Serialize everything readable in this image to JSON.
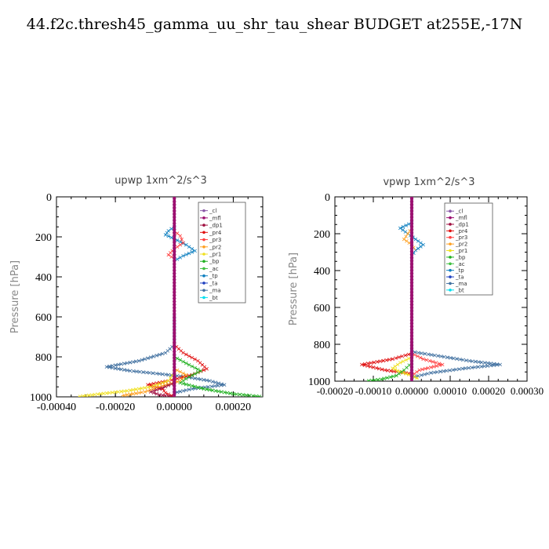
{
  "title": "44.f2c.thresh45_gamma_uu_shr_tau_shear  BUDGET at255E,-17N",
  "legend_entries": [
    {
      "label": "_cl",
      "color": "#8a5aa8"
    },
    {
      "label": "_mfl",
      "color": "#9c1070"
    },
    {
      "label": "_dp1",
      "color": "#a01040"
    },
    {
      "label": "_pr4",
      "color": "#e01010"
    },
    {
      "label": "_pr3",
      "color": "#ff4040"
    },
    {
      "label": "_pr2",
      "color": "#ffa020"
    },
    {
      "label": "_pr1",
      "color": "#f0e020"
    },
    {
      "label": "_bp",
      "color": "#20b020"
    },
    {
      "label": "_ac",
      "color": "#40c040"
    },
    {
      "label": "_tp",
      "color": "#1080c0"
    },
    {
      "label": "_ta",
      "color": "#2040c0"
    },
    {
      "label": "_ma",
      "color": "#4070a0"
    },
    {
      "label": "_bt",
      "color": "#00e0f0"
    }
  ],
  "chart_data": [
    {
      "type": "line",
      "title": "upwp   1xm^2/s^3",
      "xlabel": "",
      "ylabel": "Pressure [hPa]",
      "xlim": [
        -0.0004,
        0.0003
      ],
      "ylim": [
        1000,
        0
      ],
      "x_ticks": [
        "-0.00040",
        "-0.00020",
        "0.00000",
        "0.00020"
      ],
      "x_tick_values": [
        -0.0004,
        -0.0002,
        0.0,
        0.0002
      ],
      "y_ticks": [
        "0",
        "200",
        "400",
        "600",
        "800",
        "1000"
      ],
      "y_tick_values": [
        0,
        200,
        400,
        600,
        800,
        1000
      ],
      "legend_position": "top-right",
      "series": [
        {
          "name": "_ma",
          "color": "#4070a0",
          "points": [
            [
              0,
              600
            ],
            [
              0,
              740
            ],
            [
              -3e-05,
              780
            ],
            [
              -0.00012,
              820
            ],
            [
              -0.00023,
              850
            ],
            [
              -0.00015,
              870
            ],
            [
              -5e-05,
              885
            ],
            [
              4e-05,
              900
            ],
            [
              0.00012,
              920
            ],
            [
              0.00017,
              940
            ],
            [
              6e-05,
              960
            ],
            [
              0,
              980
            ],
            [
              0,
              1000
            ]
          ]
        },
        {
          "name": "_tp",
          "color": "#1080c0",
          "points": [
            [
              0,
              150
            ],
            [
              -2e-05,
              170
            ],
            [
              -3e-05,
              190
            ],
            [
              0,
              210
            ],
            [
              4e-05,
              240
            ],
            [
              7e-05,
              270
            ],
            [
              3e-05,
              295
            ],
            [
              0,
              320
            ]
          ]
        },
        {
          "name": "_pr4",
          "color": "#e01010",
          "points": [
            [
              0,
              740
            ],
            [
              3e-05,
              780
            ],
            [
              8e-05,
              820
            ],
            [
              0.00011,
              860
            ],
            [
              6e-05,
              890
            ],
            [
              -2e-05,
              920
            ],
            [
              -9e-05,
              940
            ],
            [
              -4e-05,
              960
            ],
            [
              -3e-05,
              980
            ],
            [
              0,
              1000
            ]
          ]
        },
        {
          "name": "_pr3",
          "color": "#ff4040",
          "points": [
            [
              0,
              170
            ],
            [
              2e-05,
              195
            ],
            [
              3e-05,
              230
            ],
            [
              0,
              260
            ],
            [
              -2e-05,
              290
            ],
            [
              0,
              310
            ]
          ]
        },
        {
          "name": "_pr1",
          "color": "#f0e020",
          "points": [
            [
              0,
              880
            ],
            [
              -2e-05,
              920
            ],
            [
              -8e-05,
              950
            ],
            [
              -0.00016,
              970
            ],
            [
              -0.00025,
              985
            ],
            [
              -0.00033,
              1000
            ]
          ]
        },
        {
          "name": "_pr2",
          "color": "#ffa020",
          "points": [
            [
              0,
              860
            ],
            [
              4e-05,
              890
            ],
            [
              2e-05,
              920
            ],
            [
              -5e-05,
              950
            ],
            [
              -0.0001,
              975
            ],
            [
              -0.00018,
              995
            ]
          ]
        },
        {
          "name": "_bp",
          "color": "#20b020",
          "points": [
            [
              0,
              800
            ],
            [
              5e-05,
              840
            ],
            [
              9e-05,
              870
            ],
            [
              5e-05,
              900
            ],
            [
              2e-05,
              930
            ],
            [
              0.0001,
              960
            ],
            [
              0.0002,
              985
            ],
            [
              0.0003,
              1000
            ]
          ]
        },
        {
          "name": "_dp1",
          "color": "#a01040",
          "points": [
            [
              0,
              930
            ],
            [
              -4e-05,
              955
            ],
            [
              -8e-05,
              975
            ],
            [
              -5e-05,
              990
            ],
            [
              0,
              1000
            ]
          ]
        },
        {
          "name": "_cl",
          "color": "#8a5aa8",
          "points": [
            [
              0,
              0
            ],
            [
              0,
              1000
            ]
          ]
        },
        {
          "name": "_mfl",
          "color": "#9c1070",
          "points": [
            [
              0,
              0
            ],
            [
              0,
              1000
            ]
          ]
        }
      ]
    },
    {
      "type": "line",
      "title": "vpwp   1xm^2/s^3",
      "xlabel": "",
      "ylabel": "Pressure [hPa]",
      "xlim": [
        -0.0002,
        0.0003
      ],
      "ylim": [
        1000,
        0
      ],
      "x_ticks": [
        "-0.00020",
        "-0.00010",
        "0.00000",
        "0.00010",
        "0.00020",
        "0.00030"
      ],
      "x_tick_values": [
        -0.0002,
        -0.0001,
        0.0,
        0.0001,
        0.0002,
        0.0003
      ],
      "y_ticks": [
        "0",
        "200",
        "400",
        "600",
        "800",
        "1000"
      ],
      "y_tick_values": [
        0,
        200,
        400,
        600,
        800,
        1000
      ],
      "legend_position": "top-right",
      "series": [
        {
          "name": "_ma",
          "color": "#4070a0",
          "points": [
            [
              0,
              800
            ],
            [
              0,
              840
            ],
            [
              6e-05,
              860
            ],
            [
              0.00015,
              890
            ],
            [
              0.00023,
              910
            ],
            [
              0.00014,
              930
            ],
            [
              5e-05,
              955
            ],
            [
              0,
              980
            ],
            [
              0,
              1000
            ]
          ]
        },
        {
          "name": "_tp",
          "color": "#1080c0",
          "points": [
            [
              0,
              140
            ],
            [
              -3e-05,
              170
            ],
            [
              -1e-05,
              200
            ],
            [
              1e-05,
              230
            ],
            [
              3e-05,
              260
            ],
            [
              1e-05,
              290
            ],
            [
              0,
              320
            ]
          ]
        },
        {
          "name": "_pr4",
          "color": "#e01010",
          "points": [
            [
              0,
              850
            ],
            [
              -5e-05,
              880
            ],
            [
              -0.00013,
              910
            ],
            [
              -7e-05,
              940
            ],
            [
              0,
              960
            ],
            [
              0,
              1000
            ]
          ]
        },
        {
          "name": "_pr3",
          "color": "#ff4040",
          "points": [
            [
              0,
              850
            ],
            [
              3e-05,
              880
            ],
            [
              8e-05,
              910
            ],
            [
              2e-05,
              940
            ],
            [
              0,
              970
            ]
          ]
        },
        {
          "name": "_pr2",
          "color": "#ffa020",
          "points": [
            [
              0,
              170
            ],
            [
              -1e-05,
              200
            ],
            [
              -2e-05,
              230
            ],
            [
              0,
              260
            ],
            [
              1e-05,
              290
            ]
          ]
        },
        {
          "name": "_pr1",
          "color": "#f0e020",
          "points": [
            [
              0,
              870
            ],
            [
              -3e-05,
              900
            ],
            [
              -5e-05,
              930
            ],
            [
              -3e-05,
              950
            ],
            [
              0,
              970
            ],
            [
              2e-05,
              990
            ]
          ]
        },
        {
          "name": "_bp",
          "color": "#20b020",
          "points": [
            [
              0,
              900
            ],
            [
              -2e-05,
              940
            ],
            [
              -4e-05,
              970
            ],
            [
              -8e-05,
              990
            ],
            [
              -0.00012,
              1000
            ]
          ]
        },
        {
          "name": "_cl",
          "color": "#8a5aa8",
          "points": [
            [
              0,
              0
            ],
            [
              0,
              1000
            ]
          ]
        },
        {
          "name": "_mfl",
          "color": "#9c1070",
          "points": [
            [
              0,
              0
            ],
            [
              0,
              1000
            ]
          ]
        }
      ]
    }
  ]
}
